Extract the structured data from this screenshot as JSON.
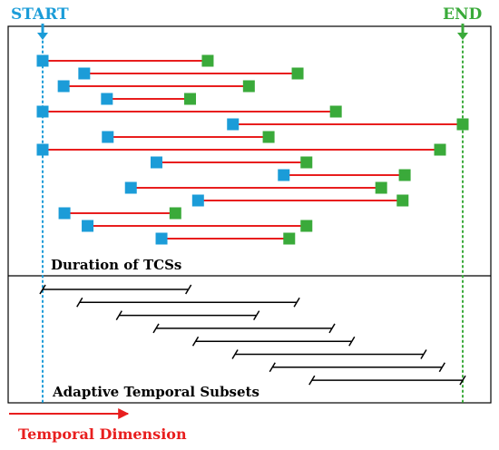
{
  "labels": {
    "start": "START",
    "end": "END",
    "duration_caption": "Duration of TCSs",
    "subsets_caption": "Adaptive Temporal Subsets",
    "axis_caption": "Temporal Dimension"
  },
  "colors": {
    "start": "#1b9cd8",
    "end": "#3aaa3a",
    "duration_line": "#e81e1e",
    "axis": "#e81e1e",
    "subset_line": "#000000",
    "frame": "#000000"
  },
  "duration_rows": [
    {
      "start": 0.0,
      "end": 0.393
    },
    {
      "start": 0.099,
      "end": 0.607
    },
    {
      "start": 0.05,
      "end": 0.491
    },
    {
      "start": 0.153,
      "end": 0.351
    },
    {
      "start": 0.0,
      "end": 0.698
    },
    {
      "start": 0.453,
      "end": 1.0
    },
    {
      "start": 0.155,
      "end": 0.538
    },
    {
      "start": 0.0,
      "end": 0.946
    },
    {
      "start": 0.271,
      "end": 0.628
    },
    {
      "start": 0.574,
      "end": 0.862
    },
    {
      "start": 0.21,
      "end": 0.806
    },
    {
      "start": 0.37,
      "end": 0.857
    },
    {
      "start": 0.052,
      "end": 0.316
    },
    {
      "start": 0.107,
      "end": 0.628
    },
    {
      "start": 0.283,
      "end": 0.587
    }
  ],
  "subset_rows": [
    {
      "start": 0.0,
      "end": 0.347
    },
    {
      "start": 0.088,
      "end": 0.605
    },
    {
      "start": 0.182,
      "end": 0.509
    },
    {
      "start": 0.27,
      "end": 0.689
    },
    {
      "start": 0.364,
      "end": 0.736
    },
    {
      "start": 0.458,
      "end": 0.907
    },
    {
      "start": 0.547,
      "end": 0.951
    },
    {
      "start": 0.641,
      "end": 1.0
    }
  ]
}
